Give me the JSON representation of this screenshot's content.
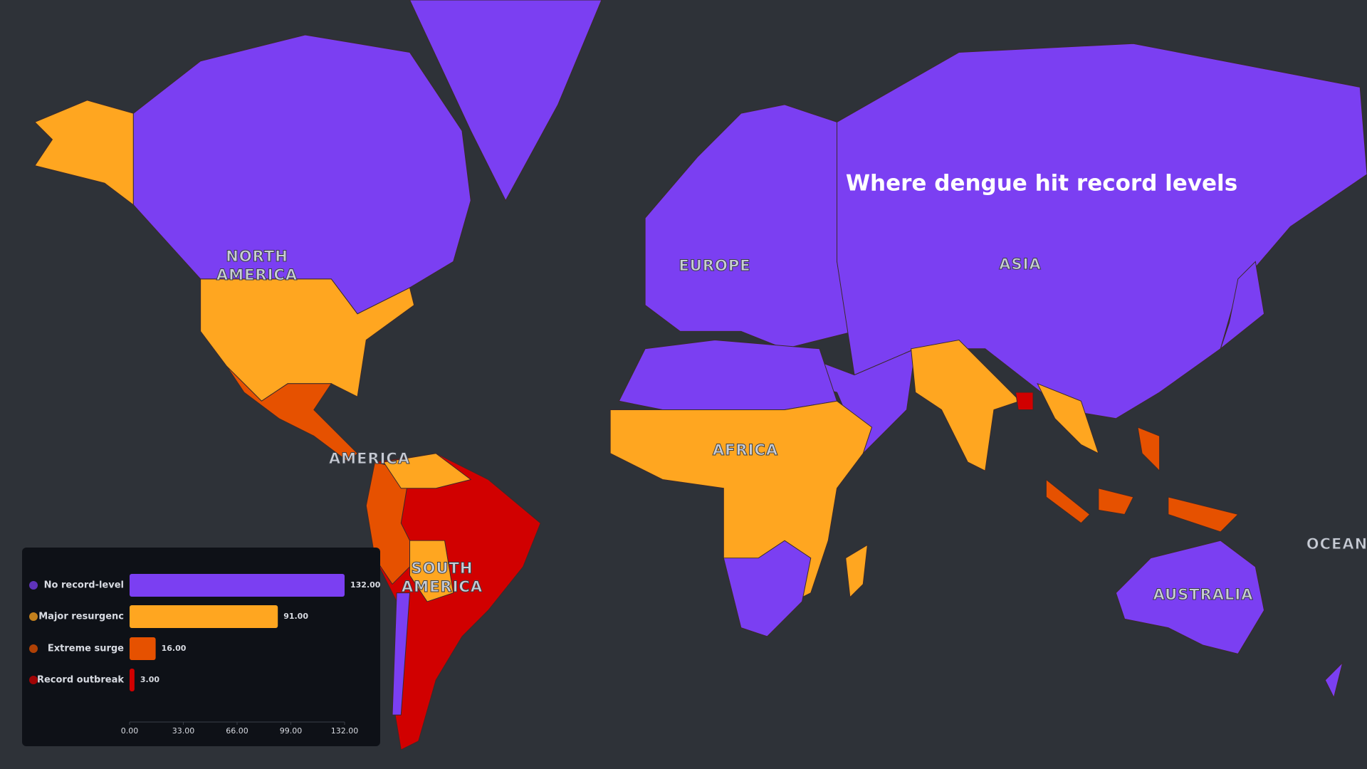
{
  "title": "Where dengue hit record levels",
  "map_labels": {
    "north_america": [
      "NORTH",
      "AMERICA"
    ],
    "europe": "EUROPE",
    "asia": "ASIA",
    "america": "AMERICA",
    "africa": "AFRICA",
    "south_america": [
      "SOUTH",
      "AMERICA"
    ],
    "australia": "AUSTRALIA",
    "ocean": "OCEAN"
  },
  "chart_data": {
    "type": "hbar",
    "categories": [
      "No record-level",
      "Major resurgenc",
      "Extreme surge",
      "Record outbreak"
    ],
    "values": [
      132,
      91,
      16,
      3
    ],
    "value_labels": [
      "132.00",
      "91.00",
      "16.00",
      "3.00"
    ],
    "colors": [
      "#7b3ff2",
      "#ffa620",
      "#e65100",
      "#d10000"
    ],
    "xlim": [
      0,
      132
    ],
    "xticks": [
      {
        "value": 0,
        "label": "0.00"
      },
      {
        "value": 33,
        "label": "33.00"
      },
      {
        "value": 66,
        "label": "66.00"
      },
      {
        "value": 99,
        "label": "99.00"
      },
      {
        "value": 132,
        "label": "132.00"
      }
    ]
  }
}
